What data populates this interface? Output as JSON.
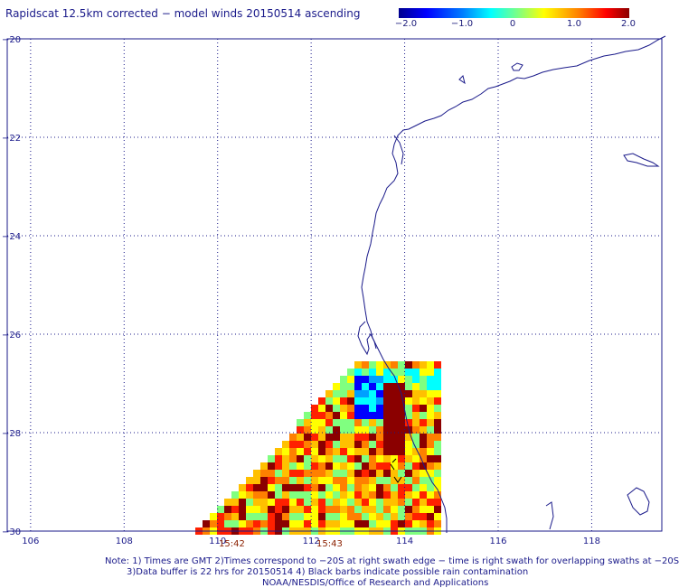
{
  "title": "Rapidscat 12.5km corrected − model winds 20150514 ascending",
  "colorbar": {
    "ticks": [
      "−2.0",
      "−1.0",
      "0",
      "1.0",
      "2.0"
    ],
    "range": [
      -2.0,
      2.0
    ],
    "colors": [
      "#00008f",
      "#0000ff",
      "#0080ff",
      "#00ffff",
      "#80ff80",
      "#ffff00",
      "#ff8000",
      "#ff0000",
      "#8b0000"
    ]
  },
  "map": {
    "lon_range": [
      105.5,
      119.5
    ],
    "lat_range": [
      -30,
      -20
    ],
    "lat_labels": [
      "−20",
      "−22",
      "−24",
      "−26",
      "−28",
      "−30"
    ],
    "lat_values": [
      -20,
      -22,
      -24,
      -26,
      -28,
      -30
    ],
    "lon_labels": [
      "106",
      "108",
      "110",
      "112",
      "114",
      "116",
      "118"
    ],
    "lon_values": [
      106,
      108,
      110,
      112,
      114,
      116,
      118
    ],
    "swath_times": [
      {
        "label": "15:42",
        "lon": 110
      },
      {
        "label": "15:43",
        "lon": 112.3
      }
    ],
    "coast_color": "#1a1a8a",
    "grid_color": "#1a1a8a"
  },
  "footer": {
    "line1": "Note: 1) Times are GMT 2)Times correspond to −20S at right swath edge − time is right swath for overlapping swaths at −20S",
    "line2": "3)Data buffer is 22 hrs for 20150514 4) Black barbs indicate possible rain contamination",
    "line3": "NOAA/NESDIS/Office of Research and Applications"
  }
}
